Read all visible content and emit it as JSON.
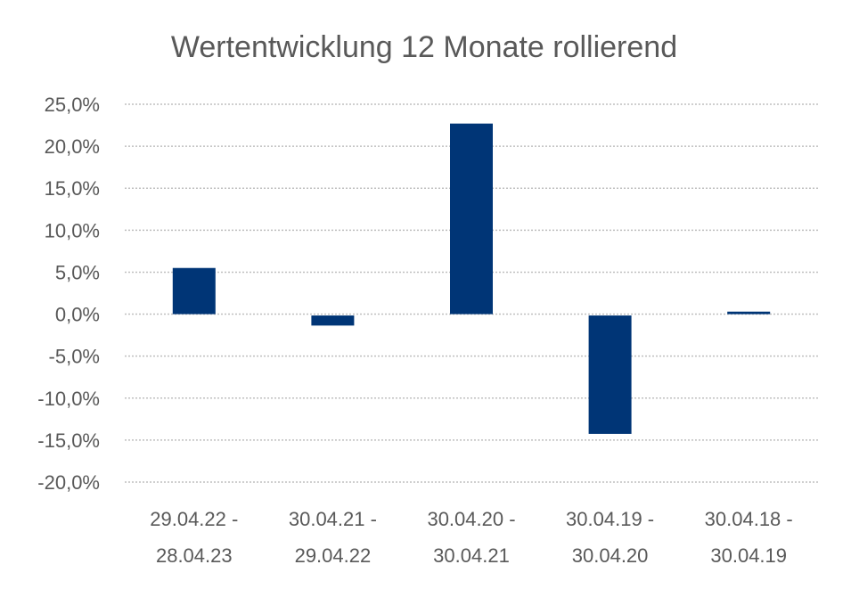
{
  "chart_data": {
    "type": "bar",
    "title": "Wertentwicklung 12 Monate rollierend",
    "categories": [
      [
        "29.04.22 -",
        "28.04.23"
      ],
      [
        "30.04.21 -",
        "29.04.22"
      ],
      [
        "30.04.20 -",
        "30.04.21"
      ],
      [
        "30.04.19 -",
        "30.04.20"
      ],
      [
        "30.04.18 -",
        "30.04.19"
      ]
    ],
    "values": [
      5.5,
      -1.2,
      22.7,
      -14.1,
      0.3
    ],
    "ylim": [
      -20,
      25
    ],
    "yticks": [
      "25,0%",
      "20,0%",
      "15,0%",
      "10,0%",
      "5,0%",
      "0,0%",
      "-5,0%",
      "-10,0%",
      "-15,0%",
      "-20,0%"
    ],
    "ytick_values": [
      25,
      20,
      15,
      10,
      5,
      0,
      -5,
      -10,
      -15,
      -20
    ],
    "grid": true,
    "bar_color": "#003576",
    "grid_color": "#bfbfbf",
    "text_color": "#595959"
  }
}
